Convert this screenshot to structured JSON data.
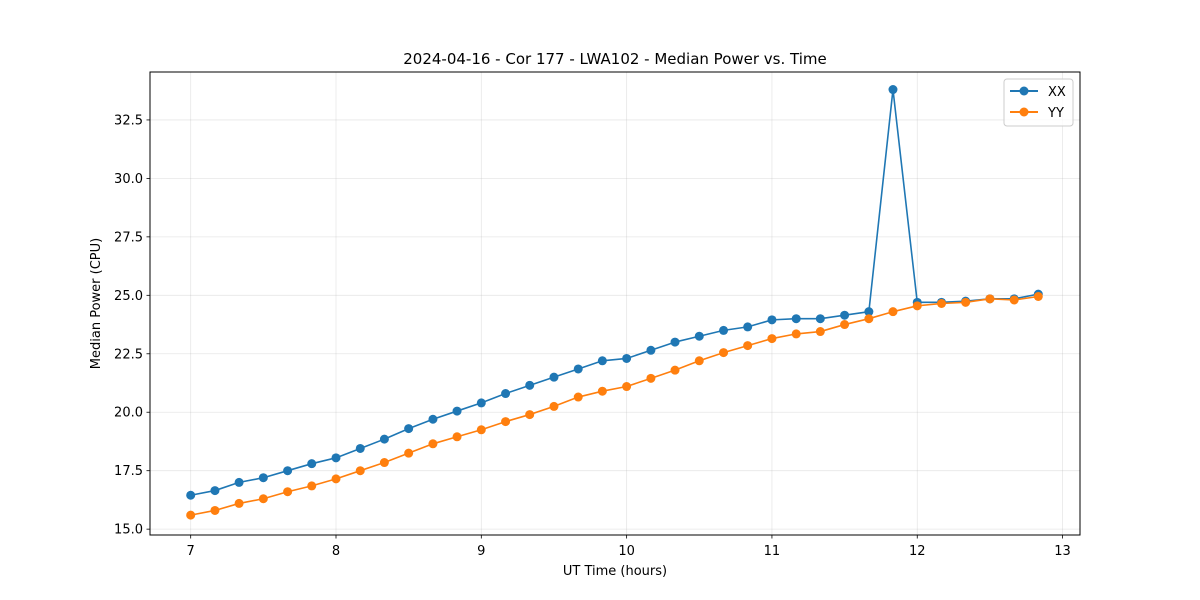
{
  "chart_data": {
    "type": "line",
    "title": "2024-04-16 - Cor 177 - LWA102 - Median Power vs. Time",
    "xlabel": "UT Time (hours)",
    "ylabel": "Median Power (CPU)",
    "xlim": [
      6.72,
      13.12
    ],
    "ylim": [
      14.75,
      34.55
    ],
    "xticks": [
      7,
      8,
      9,
      10,
      11,
      12,
      13
    ],
    "xtick_labels": [
      "7",
      "8",
      "9",
      "10",
      "11",
      "12",
      "13"
    ],
    "yticks": [
      15.0,
      17.5,
      20.0,
      22.5,
      25.0,
      27.5,
      30.0,
      32.5
    ],
    "ytick_labels": [
      "15.0",
      "17.5",
      "20.0",
      "22.5",
      "25.0",
      "27.5",
      "30.0",
      "32.5"
    ],
    "grid": true,
    "legend_position": "top-right",
    "x": [
      7.0,
      7.167,
      7.333,
      7.5,
      7.667,
      7.833,
      8.0,
      8.167,
      8.333,
      8.5,
      8.667,
      8.833,
      9.0,
      9.167,
      9.333,
      9.5,
      9.667,
      9.833,
      10.0,
      10.167,
      10.333,
      10.5,
      10.667,
      10.833,
      11.0,
      11.167,
      11.333,
      11.5,
      11.667,
      11.833,
      12.0,
      12.167,
      12.333,
      12.5,
      12.667,
      12.833
    ],
    "series": [
      {
        "name": "XX",
        "color": "#1f77b4",
        "values": [
          16.45,
          16.65,
          17.0,
          17.2,
          17.5,
          17.8,
          18.05,
          18.45,
          18.85,
          19.3,
          19.7,
          20.05,
          20.4,
          20.8,
          21.15,
          21.5,
          21.85,
          22.2,
          22.3,
          22.65,
          23.0,
          23.25,
          23.5,
          23.65,
          23.95,
          24.0,
          24.0,
          24.15,
          24.3,
          33.8,
          24.7,
          24.7,
          24.75,
          24.85,
          24.85,
          25.05
        ]
      },
      {
        "name": "YY",
        "color": "#ff7f0e",
        "values": [
          15.6,
          15.8,
          16.1,
          16.3,
          16.6,
          16.85,
          17.15,
          17.5,
          17.85,
          18.25,
          18.65,
          18.95,
          19.25,
          19.6,
          19.9,
          20.25,
          20.65,
          20.9,
          21.1,
          21.45,
          21.8,
          22.2,
          22.55,
          22.85,
          23.15,
          23.35,
          23.45,
          23.75,
          24.0,
          24.3,
          24.55,
          24.65,
          24.7,
          24.85,
          24.8,
          24.95
        ]
      }
    ]
  }
}
